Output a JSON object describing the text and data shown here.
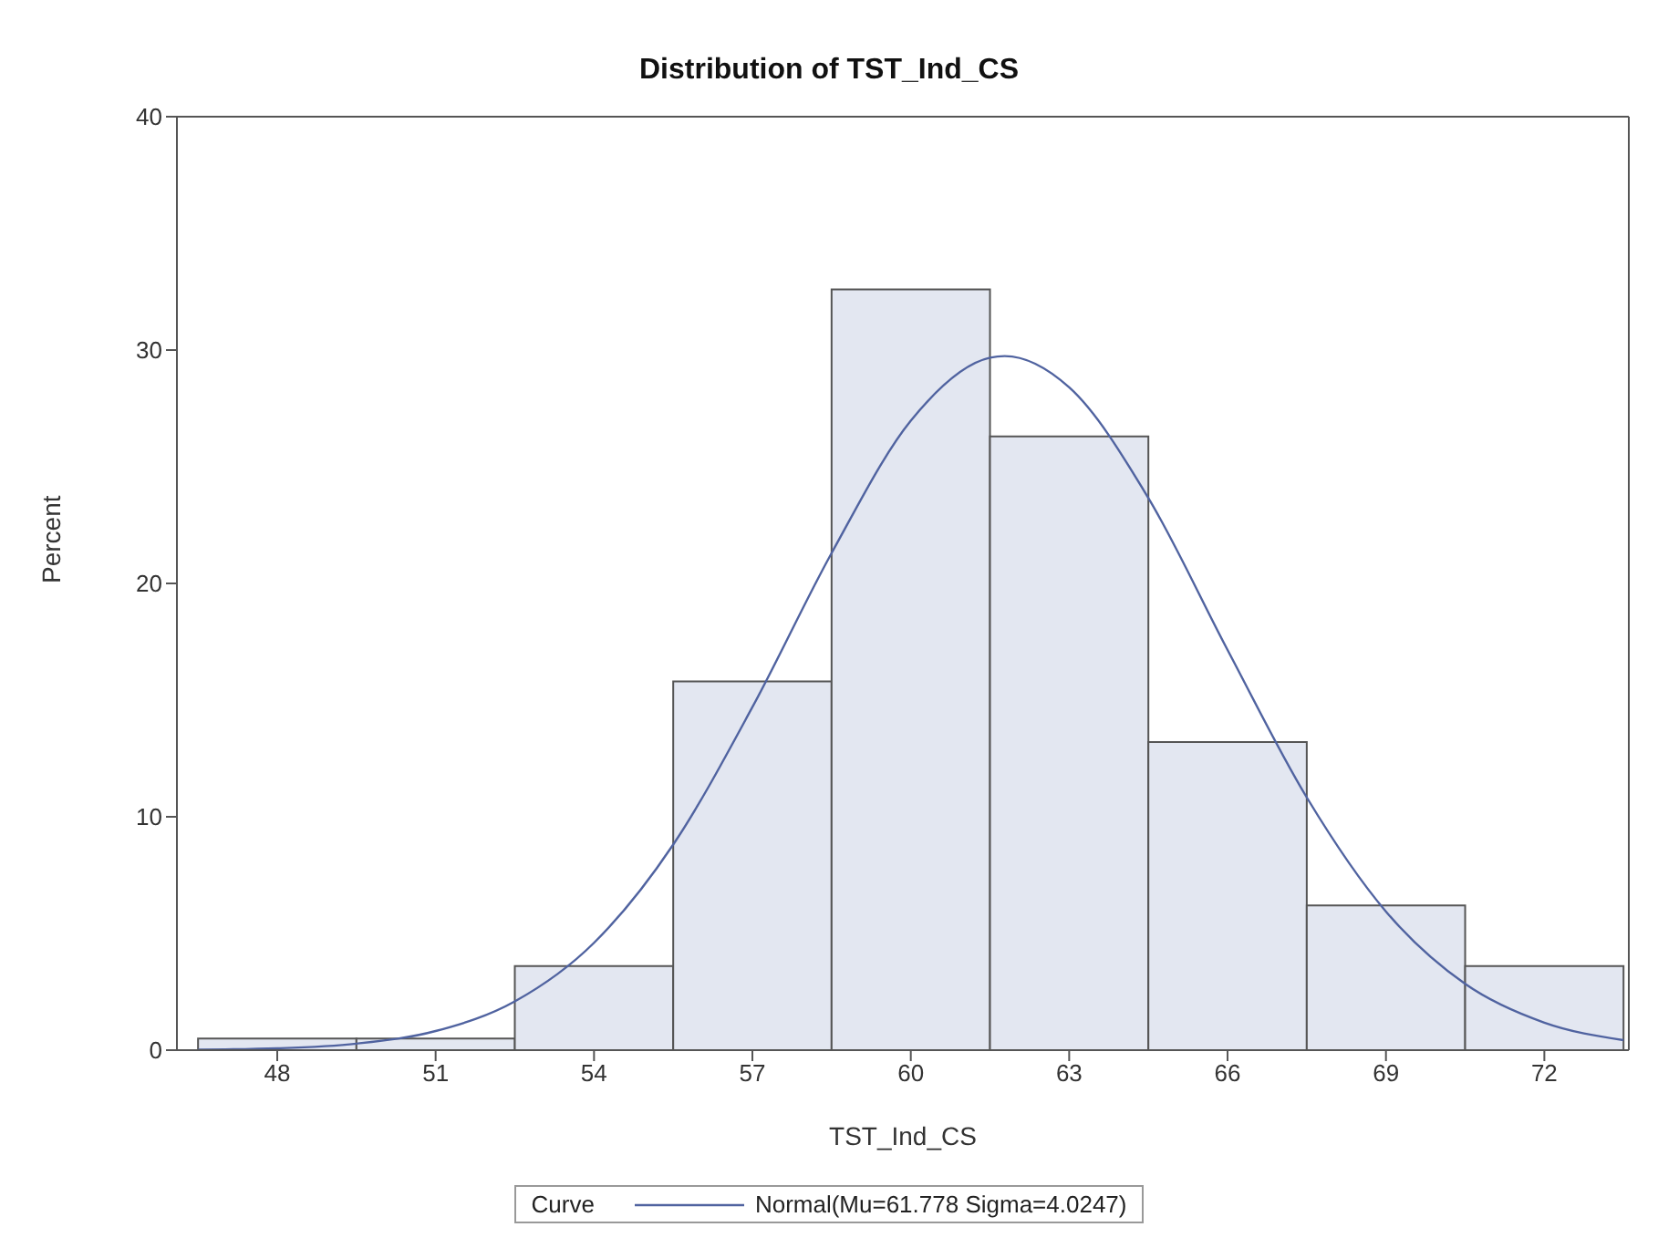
{
  "chart_data": {
    "type": "histogram",
    "title": "Distribution of TST_Ind_CS",
    "xlabel": "TST_Ind_CS",
    "ylabel": "Percent",
    "legend_title": "Curve",
    "legend": "bottom",
    "bins": [
      46.5,
      49.5,
      52.5,
      55.5,
      58.5,
      61.5,
      64.5,
      67.5,
      70.5,
      73.5
    ],
    "values": [
      0.5,
      0.5,
      3.6,
      15.8,
      32.6,
      26.3,
      13.2,
      6.2,
      3.6
    ],
    "color": "#e3e7f1",
    "series": [
      {
        "type": "line",
        "name": "Normal(Mu=61.778 Sigma=4.0247)",
        "color": "#5063a0",
        "x": [
          46.5,
          48,
          49.5,
          51,
          52.5,
          54,
          55.5,
          57,
          58.5,
          60,
          61.5,
          61.778,
          63,
          64.5,
          66,
          67.5,
          69,
          70.5,
          72,
          73.5
        ],
        "values": [
          0.02,
          0.08,
          0.28,
          0.82,
          2.09,
          4.6,
          8.81,
          14.7,
          21.3,
          26.97,
          29.67,
          29.74,
          28.4,
          23.66,
          17.15,
          10.83,
          5.94,
          2.84,
          1.18,
          0.43
        ]
      }
    ],
    "xlim": [
      46.1,
      73.6
    ],
    "xticks": [
      48,
      51,
      54,
      57,
      60,
      63,
      66,
      69,
      72
    ],
    "ylim": [
      0,
      40
    ],
    "yticks": [
      0,
      10,
      20,
      30,
      40
    ],
    "grid": false
  }
}
